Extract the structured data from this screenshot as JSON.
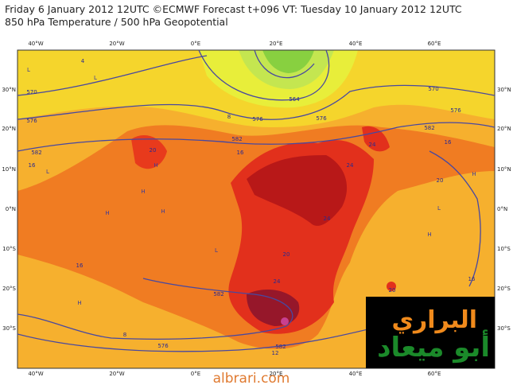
{
  "header": {
    "line1": "Friday 6 January 2012 12UTC ©ECMWF Forecast t+096 VT: Tuesday 10 January 2012 12UTC",
    "line2": "850 hPa Temperature / 500 hPa Geopotential"
  },
  "map": {
    "lon_labels": [
      "40°W",
      "20°W",
      "0°E",
      "20°E",
      "40°E",
      "60°E"
    ],
    "lat_labels": [
      "30°N",
      "20°N",
      "10°N",
      "0°N",
      "10°S",
      "20°S",
      "30°S"
    ],
    "contour_labels": [
      "570",
      "576",
      "582",
      "16",
      "16",
      "20",
      "576",
      "582",
      "16",
      "564",
      "576",
      "570",
      "576",
      "582",
      "16",
      "20",
      "24",
      "24",
      "24",
      "20",
      "24",
      "582",
      "16",
      "20",
      "8",
      "576",
      "12",
      "582",
      "4",
      "8"
    ],
    "pressure_marks": [
      "L",
      "L",
      "L",
      "H",
      "H",
      "H",
      "H",
      "H",
      "L",
      "H",
      "H",
      "L"
    ]
  },
  "logo": {
    "line1": "البراري",
    "line2": "أبو ميعاد"
  },
  "footer": "albrari.com"
}
